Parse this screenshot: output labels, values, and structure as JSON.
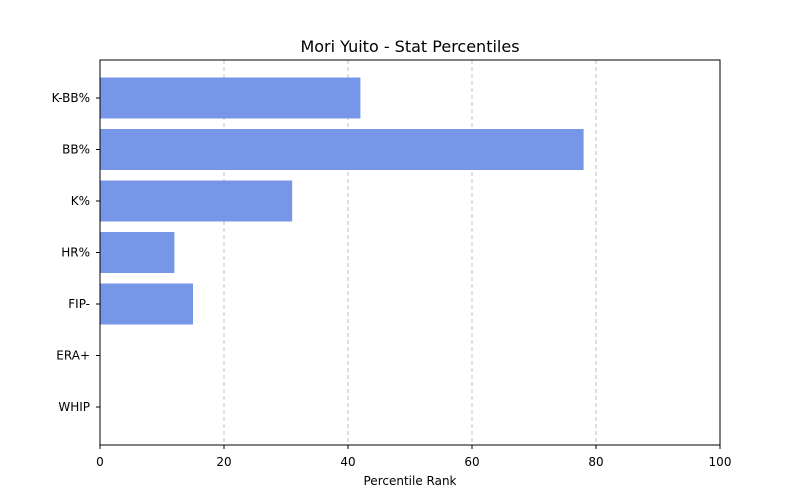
{
  "chart_data": {
    "type": "bar",
    "orientation": "horizontal",
    "title": "Mori Yuito - Stat Percentiles",
    "xlabel": "Percentile Rank",
    "ylabel": "",
    "categories": [
      "K-BB%",
      "BB%",
      "K%",
      "HR%",
      "FIP-",
      "ERA+",
      "WHIP"
    ],
    "values": [
      42,
      78,
      31,
      12,
      15,
      0,
      0
    ],
    "xlim": [
      0,
      100
    ],
    "xticks": [
      0,
      20,
      40,
      60,
      80,
      100
    ],
    "grid": "x-dashed",
    "bar_color": "#7896e8"
  }
}
